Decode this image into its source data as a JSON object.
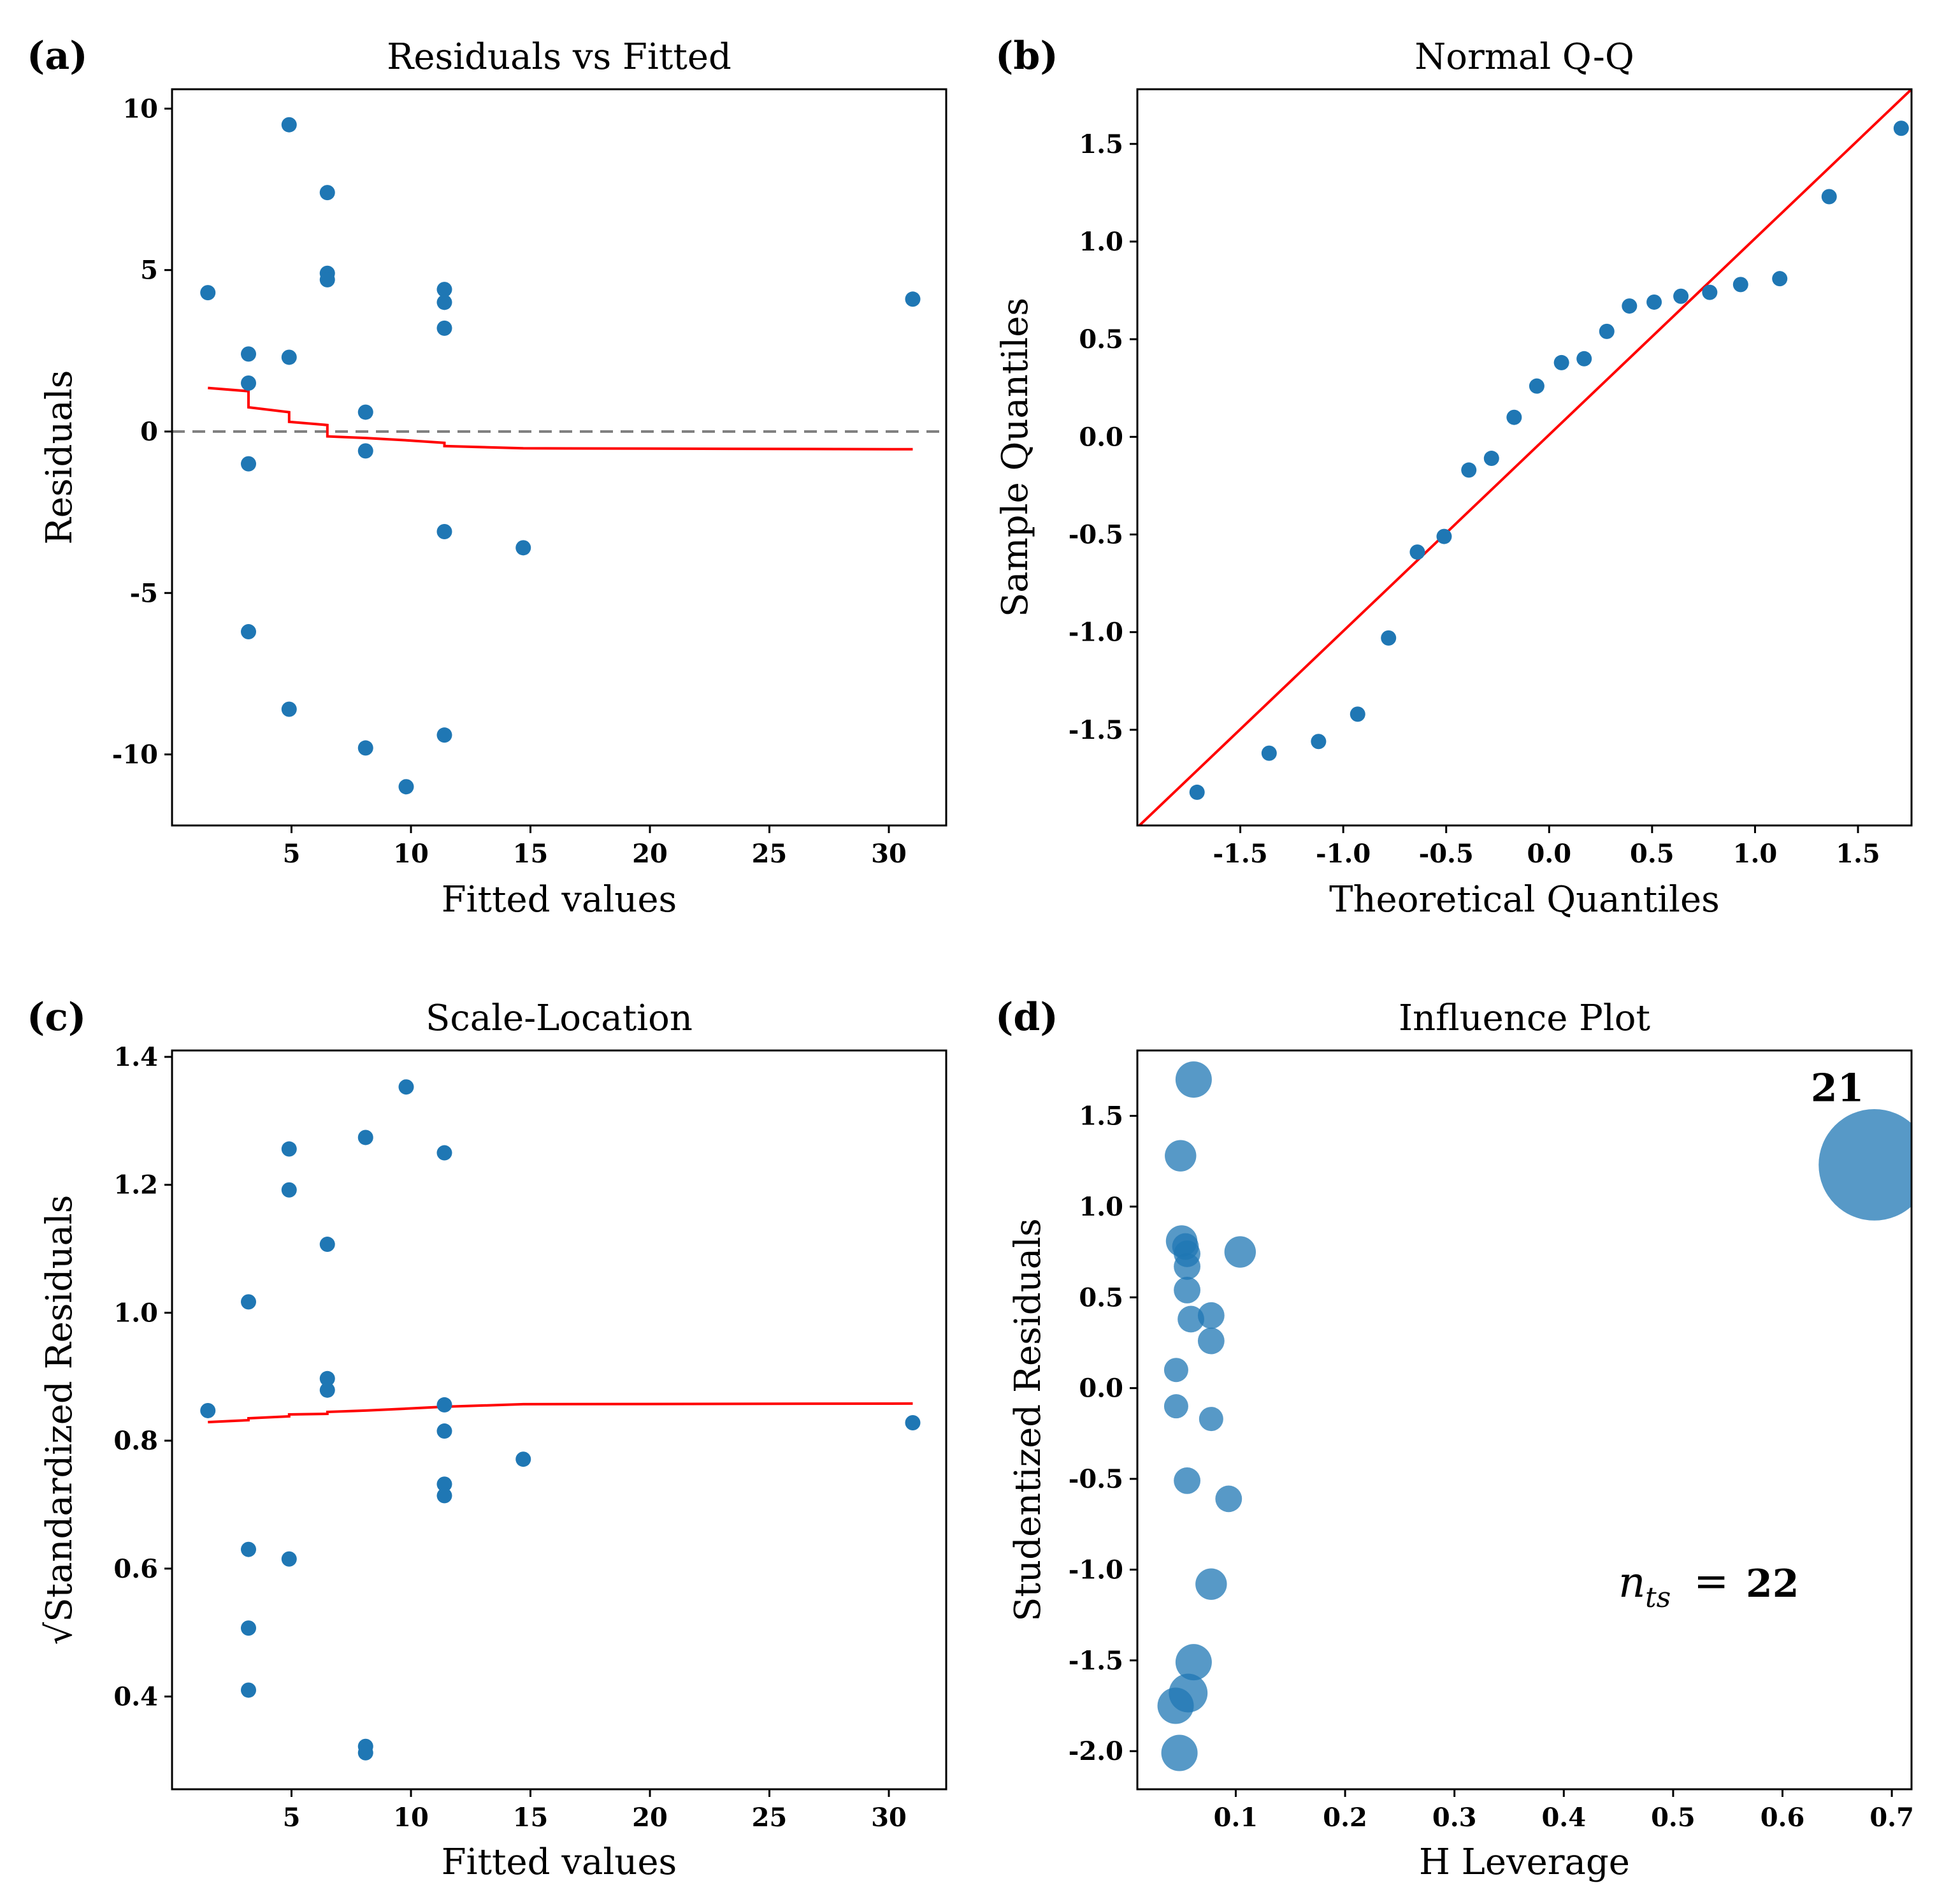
{
  "colors": {
    "points": "#1f77b4",
    "smooth_line": "#ff0000",
    "reference_line": "#ff0000",
    "zero_line": "#808080",
    "frame": "#000000"
  },
  "chart_data": [
    {
      "id": "a",
      "panel_letter": "(a)",
      "type": "scatter",
      "title": "Residuals vs Fitted",
      "xlabel": "Fitted values",
      "ylabel": "Residuals",
      "xlim": [
        0,
        32.4
      ],
      "ylim": [
        -12.2,
        10.6
      ],
      "xticks": [
        5,
        10,
        15,
        20,
        25,
        30
      ],
      "yticks": [
        10,
        5,
        0,
        -5,
        -10
      ],
      "ytick_labels": [
        "10",
        "5",
        "0",
        "-5",
        "-10"
      ],
      "points": [
        [
          1.5,
          4.3
        ],
        [
          3.2,
          2.4
        ],
        [
          3.2,
          1.5
        ],
        [
          3.2,
          -1.0
        ],
        [
          3.2,
          -6.2
        ],
        [
          4.9,
          9.5
        ],
        [
          4.9,
          2.3
        ],
        [
          4.9,
          -8.6
        ],
        [
          6.5,
          7.4
        ],
        [
          6.5,
          4.9
        ],
        [
          6.5,
          4.7
        ],
        [
          8.1,
          0.6
        ],
        [
          8.1,
          -0.6
        ],
        [
          8.1,
          -9.8
        ],
        [
          9.8,
          -11.0
        ],
        [
          11.4,
          4.4
        ],
        [
          11.4,
          4.0
        ],
        [
          11.4,
          3.2
        ],
        [
          11.4,
          -3.1
        ],
        [
          11.4,
          -9.4
        ],
        [
          14.7,
          -3.6
        ],
        [
          31.0,
          4.1
        ]
      ],
      "smooth_line": [
        [
          1.5,
          1.35
        ],
        [
          3.2,
          1.25
        ],
        [
          3.2,
          0.75
        ],
        [
          4.9,
          0.6
        ],
        [
          4.9,
          0.3
        ],
        [
          6.5,
          0.2
        ],
        [
          6.5,
          -0.15
        ],
        [
          8.1,
          -0.2
        ],
        [
          9.8,
          -0.27
        ],
        [
          11.4,
          -0.35
        ],
        [
          11.4,
          -0.45
        ],
        [
          14.7,
          -0.52
        ],
        [
          31.0,
          -0.55
        ]
      ],
      "hline": 0
    },
    {
      "id": "b",
      "panel_letter": "(b)",
      "type": "scatter",
      "title": "Normal Q-Q",
      "xlabel": "Theoretical Quantiles",
      "ylabel": "Sample Quantiles",
      "xlim": [
        -2.0,
        1.76
      ],
      "ylim": [
        -1.99,
        1.78
      ],
      "xticks": [
        -1.5,
        -1.0,
        -0.5,
        0.0,
        0.5,
        1.0,
        1.5
      ],
      "xtick_labels": [
        "-1.5",
        "-1.0",
        "-0.5",
        "0.0",
        "0.5",
        "1.0",
        "1.5"
      ],
      "yticks": [
        1.5,
        1.0,
        0.5,
        0.0,
        -0.5,
        -1.0,
        -1.5
      ],
      "ytick_labels": [
        "1.5",
        "1.0",
        "0.5",
        "0.0",
        "-0.5",
        "-1.0",
        "-1.5"
      ],
      "points": [
        [
          -1.71,
          -1.82
        ],
        [
          -1.36,
          -1.62
        ],
        [
          -1.12,
          -1.56
        ],
        [
          -0.93,
          -1.42
        ],
        [
          -0.78,
          -1.03
        ],
        [
          -0.64,
          -0.59
        ],
        [
          -0.51,
          -0.51
        ],
        [
          -0.39,
          -0.17
        ],
        [
          -0.28,
          -0.11
        ],
        [
          -0.17,
          0.1
        ],
        [
          -0.06,
          0.26
        ],
        [
          0.06,
          0.38
        ],
        [
          0.17,
          0.4
        ],
        [
          0.28,
          0.54
        ],
        [
          0.39,
          0.67
        ],
        [
          0.51,
          0.69
        ],
        [
          0.64,
          0.72
        ],
        [
          0.78,
          0.74
        ],
        [
          0.93,
          0.78
        ],
        [
          1.12,
          0.81
        ],
        [
          1.36,
          1.23
        ],
        [
          1.71,
          1.58
        ]
      ],
      "reference_line": [
        [
          -2.0,
          -2.0
        ],
        [
          1.76,
          1.78
        ]
      ]
    },
    {
      "id": "c",
      "panel_letter": "(c)",
      "type": "scatter",
      "title": "Scale-Location",
      "xlabel": "Fitted values",
      "ylabel": "√Standardized Residuals",
      "xlim": [
        0,
        32.4
      ],
      "ylim": [
        0.255,
        1.41
      ],
      "xticks": [
        5,
        10,
        15,
        20,
        25,
        30
      ],
      "yticks": [
        1.4,
        1.2,
        1.0,
        0.8,
        0.6,
        0.4
      ],
      "ytick_labels": [
        "1.4",
        "1.2",
        "1.0",
        "0.8",
        "0.6",
        "0.4"
      ],
      "points": [
        [
          1.5,
          0.847
        ],
        [
          3.2,
          1.017
        ],
        [
          3.2,
          0.63
        ],
        [
          3.2,
          0.507
        ],
        [
          3.2,
          0.41
        ],
        [
          4.9,
          1.256
        ],
        [
          4.9,
          1.192
        ],
        [
          4.9,
          0.615
        ],
        [
          6.5,
          1.107
        ],
        [
          6.5,
          0.897
        ],
        [
          6.5,
          0.879
        ],
        [
          8.1,
          1.274
        ],
        [
          8.1,
          0.322
        ],
        [
          8.1,
          0.312
        ],
        [
          9.8,
          1.353
        ],
        [
          11.4,
          1.25
        ],
        [
          11.4,
          0.856
        ],
        [
          11.4,
          0.815
        ],
        [
          11.4,
          0.732
        ],
        [
          11.4,
          0.714
        ],
        [
          14.7,
          0.771
        ],
        [
          31.0,
          0.828
        ]
      ],
      "smooth_line": [
        [
          1.5,
          0.829
        ],
        [
          3.2,
          0.832
        ],
        [
          3.2,
          0.835
        ],
        [
          4.9,
          0.838
        ],
        [
          4.9,
          0.841
        ],
        [
          6.5,
          0.842
        ],
        [
          6.5,
          0.845
        ],
        [
          8.1,
          0.847
        ],
        [
          9.8,
          0.85
        ],
        [
          11.4,
          0.853
        ],
        [
          14.7,
          0.857
        ],
        [
          31.0,
          0.858
        ]
      ]
    },
    {
      "id": "d",
      "panel_letter": "(d)",
      "type": "scatter",
      "title": "Influence Plot",
      "xlabel": "H Leverage",
      "ylabel": "Studentized Residuals",
      "xlim": [
        0.01,
        0.718
      ],
      "ylim": [
        -2.21,
        1.86
      ],
      "xticks": [
        0.1,
        0.2,
        0.3,
        0.4,
        0.5,
        0.6,
        0.7
      ],
      "xtick_labels": [
        "0.1",
        "0.2",
        "0.3",
        "0.4",
        "0.5",
        "0.6",
        "0.7"
      ],
      "yticks": [
        1.5,
        1.0,
        0.5,
        0.0,
        -0.5,
        -1.0,
        -1.5,
        -2.0
      ],
      "ytick_labels": [
        "1.5",
        "1.0",
        "0.5",
        "0.0",
        "-0.5",
        "-1.0",
        "-1.5",
        "-2.0"
      ],
      "points": [
        {
          "x": 0.0615,
          "y": 1.7,
          "size": 1.5
        },
        {
          "x": 0.0495,
          "y": 1.28,
          "size": 1.3
        },
        {
          "x": 0.0505,
          "y": 0.81,
          "size": 1.3
        },
        {
          "x": 0.054,
          "y": 0.78,
          "size": 1.1
        },
        {
          "x": 0.0555,
          "y": 0.74,
          "size": 1.1
        },
        {
          "x": 0.0555,
          "y": 0.67,
          "size": 1.1
        },
        {
          "x": 0.0555,
          "y": 0.54,
          "size": 1.1
        },
        {
          "x": 0.059,
          "y": 0.38,
          "size": 1.1
        },
        {
          "x": 0.104,
          "y": 0.75,
          "size": 1.3
        },
        {
          "x": 0.0775,
          "y": 0.4,
          "size": 1.1
        },
        {
          "x": 0.0775,
          "y": 0.26,
          "size": 1.1
        },
        {
          "x": 0.0455,
          "y": 0.1,
          "size": 1.0
        },
        {
          "x": 0.0455,
          "y": -0.1,
          "size": 1.0
        },
        {
          "x": 0.0775,
          "y": -0.17,
          "size": 1.0
        },
        {
          "x": 0.0555,
          "y": -0.51,
          "size": 1.1
        },
        {
          "x": 0.0935,
          "y": -0.61,
          "size": 1.1
        },
        {
          "x": 0.0775,
          "y": -1.08,
          "size": 1.3
        },
        {
          "x": 0.0615,
          "y": -1.51,
          "size": 1.5
        },
        {
          "x": 0.0565,
          "y": -1.68,
          "size": 1.6
        },
        {
          "x": 0.045,
          "y": -1.75,
          "size": 1.5
        },
        {
          "x": 0.0485,
          "y": -2.01,
          "size": 1.5
        },
        {
          "x": 0.684,
          "y": 1.23,
          "size": 4.6,
          "label": "21"
        }
      ],
      "annotation": {
        "text": "n",
        "subscript": "ts",
        "equals": "=",
        "value": "22"
      }
    }
  ]
}
